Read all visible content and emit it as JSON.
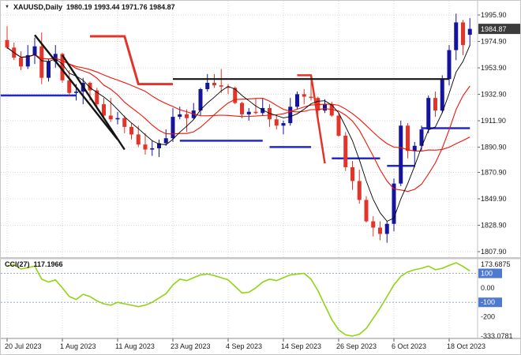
{
  "header": {
    "dropdown_glyph": "▼",
    "symbol": "XAUUSD,Daily",
    "ohlc": "1980.19 1993.44 1971.76 1984.87"
  },
  "price_axis": {
    "current_price": "1984.87"
  },
  "chart_data": {
    "type": "candlestick",
    "title": "XAUUSD,Daily",
    "y_ticks": [
      "1995.90",
      "1974.90",
      "1953.90",
      "1932.90",
      "1911.90",
      "1890.90",
      "1870.90",
      "1849.90",
      "1828.90",
      "1807.90"
    ],
    "x_ticks": [
      {
        "label": "20 Jul 2023",
        "index": 0
      },
      {
        "label": "1 Aug 2023",
        "index": 8
      },
      {
        "label": "11 Aug 2023",
        "index": 16
      },
      {
        "label": "23 Aug 2023",
        "index": 24
      },
      {
        "label": "4 Sep 2023",
        "index": 32
      },
      {
        "label": "14 Sep 2023",
        "index": 40
      },
      {
        "label": "26 Sep 2023",
        "index": 48
      },
      {
        "label": "6 Oct 2023",
        "index": 56
      },
      {
        "label": "18 Oct 2023",
        "index": 64
      }
    ],
    "candles": [
      [
        1976,
        1987,
        1969,
        1970
      ],
      [
        1970,
        1974,
        1960,
        1962
      ],
      [
        1962,
        1967,
        1952,
        1955
      ],
      [
        1955,
        1972,
        1953,
        1964
      ],
      [
        1964,
        1978,
        1957,
        1971
      ],
      [
        1971,
        1982,
        1941,
        1946
      ],
      [
        1946,
        1961,
        1943,
        1959
      ],
      [
        1959,
        1972,
        1954,
        1965
      ],
      [
        1965,
        1966,
        1942,
        1944
      ],
      [
        1944,
        1952,
        1932,
        1934
      ],
      [
        1934,
        1941,
        1928,
        1935
      ],
      [
        1935,
        1946,
        1925,
        1942
      ],
      [
        1942,
        1943,
        1928,
        1936
      ],
      [
        1936,
        1938,
        1922,
        1925
      ],
      [
        1925,
        1930,
        1914,
        1916
      ],
      [
        1916,
        1930,
        1911,
        1913
      ],
      [
        1913,
        1919,
        1909,
        1914
      ],
      [
        1914,
        1916,
        1902,
        1907
      ],
      [
        1907,
        1910,
        1897,
        1901
      ],
      [
        1901,
        1908,
        1891,
        1893
      ],
      [
        1893,
        1902,
        1885,
        1889
      ],
      [
        1889,
        1896,
        1884,
        1890
      ],
      [
        1890,
        1897,
        1883,
        1894
      ],
      [
        1894,
        1905,
        1892,
        1898
      ],
      [
        1898,
        1922,
        1895,
        1915
      ],
      [
        1915,
        1923,
        1913,
        1917
      ],
      [
        1917,
        1921,
        1903,
        1914
      ],
      [
        1914,
        1926,
        1913,
        1920
      ],
      [
        1920,
        1938,
        1916,
        1937
      ],
      [
        1937,
        1949,
        1935,
        1942
      ],
      [
        1942,
        1949,
        1938,
        1940
      ],
      [
        1940,
        1953,
        1934,
        1939
      ],
      [
        1939,
        1941,
        1933,
        1938
      ],
      [
        1938,
        1939,
        1925,
        1926
      ],
      [
        1926,
        1927,
        1914,
        1917
      ],
      [
        1917,
        1922,
        1912,
        1919
      ],
      [
        1919,
        1930,
        1917,
        1918
      ],
      [
        1918,
        1930,
        1916,
        1922
      ],
      [
        1922,
        1925,
        1907,
        1913
      ],
      [
        1913,
        1917,
        1905,
        1908
      ],
      [
        1908,
        1912,
        1901,
        1910
      ],
      [
        1910,
        1930,
        1908,
        1923
      ],
      [
        1923,
        1935,
        1921,
        1933
      ],
      [
        1933,
        1937,
        1925,
        1931
      ],
      [
        1931,
        1947,
        1928,
        1930
      ],
      [
        1930,
        1931,
        1913,
        1920
      ],
      [
        1920,
        1929,
        1918,
        1925
      ],
      [
        1925,
        1927,
        1915,
        1916
      ],
      [
        1916,
        1918,
        1899,
        1900
      ],
      [
        1900,
        1903,
        1872,
        1875
      ],
      [
        1875,
        1880,
        1857,
        1864
      ],
      [
        1864,
        1873,
        1846,
        1849
      ],
      [
        1849,
        1852,
        1831,
        1832
      ],
      [
        1832,
        1836,
        1820,
        1827
      ],
      [
        1827,
        1832,
        1817,
        1822
      ],
      [
        1822,
        1832,
        1815,
        1830
      ],
      [
        1830,
        1866,
        1824,
        1862
      ],
      [
        1862,
        1912,
        1860,
        1908
      ],
      [
        1908,
        1910,
        1882,
        1888
      ],
      [
        1888,
        1895,
        1875,
        1892
      ],
      [
        1892,
        1908,
        1888,
        1905
      ],
      [
        1905,
        1932,
        1902,
        1930
      ],
      [
        1930,
        1935,
        1915,
        1920
      ],
      [
        1920,
        1948,
        1918,
        1945
      ],
      [
        1945,
        1972,
        1940,
        1968
      ],
      [
        1968,
        1997,
        1960,
        1990
      ],
      [
        1990,
        1992,
        1964,
        1972
      ],
      [
        1980.19,
        1993.44,
        1971.76,
        1984.87
      ]
    ],
    "overlays": {
      "moving_averages": [
        {
          "period": 21,
          "color": "#f01408",
          "width": 1.1
        },
        {
          "period": 10,
          "color": "#f01408",
          "width": 1.1
        },
        {
          "period": 5,
          "color": "#000000",
          "width": 0.9
        }
      ],
      "step_lines": [
        {
          "color": "#2028d4",
          "width": 2.5,
          "points": [
            [
              -1,
              1932
            ],
            [
              10,
              1932
            ]
          ]
        },
        {
          "color": "#2028d4",
          "width": 2.5,
          "points": [
            [
              25,
              1896
            ],
            [
              37,
              1896
            ]
          ]
        },
        {
          "color": "#2028d4",
          "width": 2.5,
          "points": [
            [
              38,
              1891
            ],
            [
              44,
              1891
            ]
          ]
        },
        {
          "color": "#2028d4",
          "width": 2.5,
          "points": [
            [
              47,
              1882
            ],
            [
              54,
              1882
            ]
          ]
        },
        {
          "color": "#2028d4",
          "width": 2.5,
          "points": [
            [
              55,
              1876
            ],
            [
              59,
              1876
            ]
          ]
        },
        {
          "color": "#2028d4",
          "width": 2.5,
          "points": [
            [
              60,
              1906
            ],
            [
              67,
              1906
            ]
          ]
        },
        {
          "color": "#e23428",
          "width": 3,
          "points": [
            [
              12,
              1979
            ],
            [
              17,
              1979
            ],
            [
              19,
              1941
            ],
            [
              24,
              1941
            ]
          ]
        },
        {
          "color": "#e23428",
          "width": 2.5,
          "points": [
            [
              42,
              1948
            ],
            [
              44,
              1948
            ],
            [
              46,
              1878
            ]
          ]
        }
      ],
      "trend_lines": [
        {
          "color": "#141414",
          "width": 2.4,
          "points": [
            [
              4,
              1980
            ],
            [
              16,
              1897
            ]
          ]
        },
        {
          "color": "#141414",
          "width": 2.4,
          "points": [
            [
              8,
              1964
            ],
            [
              17,
              1889
            ]
          ]
        },
        {
          "color": "#141414",
          "width": 2.2,
          "points": [
            [
              24,
              1945
            ],
            [
              64,
              1945
            ]
          ]
        }
      ]
    },
    "indicator_pane": {
      "name": "CCI(27)",
      "current": "117.1966",
      "max": 173.6875,
      "min": -333.0781,
      "levels": [
        100,
        -100
      ],
      "axis_labels": [
        {
          "text": "173.6875",
          "value": 173.6875,
          "boxed": false
        },
        {
          "text": "100",
          "value": 100,
          "boxed": true
        },
        {
          "text": "0.00",
          "value": 0,
          "boxed": false
        },
        {
          "text": "-100",
          "value": -100,
          "boxed": true
        },
        {
          "text": "-200",
          "value": -200,
          "boxed": false
        },
        {
          "text": "-333.0781",
          "value": -333.0781,
          "boxed": false
        }
      ],
      "values": [
        150,
        160,
        130,
        140,
        150,
        60,
        40,
        55,
        0,
        -60,
        -80,
        -45,
        -60,
        -90,
        -110,
        -120,
        -100,
        -110,
        -120,
        -130,
        -120,
        -100,
        -70,
        -40,
        20,
        60,
        50,
        70,
        90,
        95,
        85,
        70,
        55,
        10,
        -35,
        -30,
        0,
        40,
        60,
        50,
        70,
        90,
        95,
        100,
        60,
        -20,
        -120,
        -220,
        -290,
        -325,
        -333,
        -320,
        -280,
        -210,
        -140,
        -60,
        20,
        80,
        110,
        125,
        135,
        150,
        125,
        135,
        155,
        173,
        148,
        117.2
      ]
    }
  },
  "colors": {
    "bull": "#14149c",
    "bear": "#e23428",
    "cci": "#90d414",
    "grid": "#d7d7d7",
    "level_line": "#9aaace",
    "level_box": "#4d79cf",
    "badge_bg": "#3c3c3c",
    "badge_text": "#ffffff",
    "axis_text": "#1a1a1a",
    "divider": "#8f8f8f",
    "axis_border": "#c0c0c0",
    "tick": "#555555"
  }
}
